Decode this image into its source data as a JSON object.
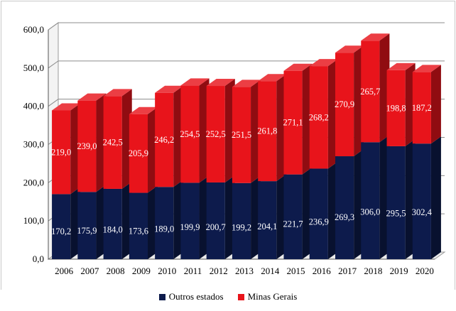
{
  "chart_data": {
    "type": "bar",
    "stacked": true,
    "style": "3d",
    "categories": [
      "2006",
      "2007",
      "2008",
      "2009",
      "2010",
      "2011",
      "2012",
      "2013",
      "2014",
      "2015",
      "2016",
      "2017",
      "2018",
      "2019",
      "2020"
    ],
    "series": [
      {
        "name": "Outros estados",
        "color": "#0d1b4c",
        "values": [
          170.2,
          175.9,
          184.0,
          173.6,
          189.0,
          199.9,
          200.7,
          199.2,
          204.1,
          221.7,
          236.9,
          269.3,
          306.0,
          295.5,
          302.4
        ],
        "labels": [
          "170,2",
          "175,9",
          "184,0",
          "173,6",
          "189,0",
          "199,9",
          "200,7",
          "199,2",
          "204,1",
          "221,7",
          "236,9",
          "269,3",
          "306,0",
          "295,5",
          "302,4"
        ]
      },
      {
        "name": "Minas Gerais",
        "color": "#e8141b",
        "values": [
          219.0,
          239.0,
          242.5,
          205.9,
          246.2,
          254.5,
          252.5,
          251.5,
          261.8,
          271.1,
          268.2,
          270.9,
          265.7,
          198.8,
          187.2
        ],
        "labels": [
          "219,0",
          "239,0",
          "242,5",
          "205,9",
          "246,2",
          "254,5",
          "252,5",
          "251,5",
          "261,8",
          "271,1",
          "268,2",
          "270,9",
          "265,7",
          "198,8",
          "187,2"
        ]
      }
    ],
    "ylim": [
      0,
      600
    ],
    "yticks": [
      "0,0",
      "100,0",
      "200,0",
      "300,0",
      "400,0",
      "500,0",
      "600,0"
    ],
    "grid": true,
    "legend_position": "bottom"
  }
}
